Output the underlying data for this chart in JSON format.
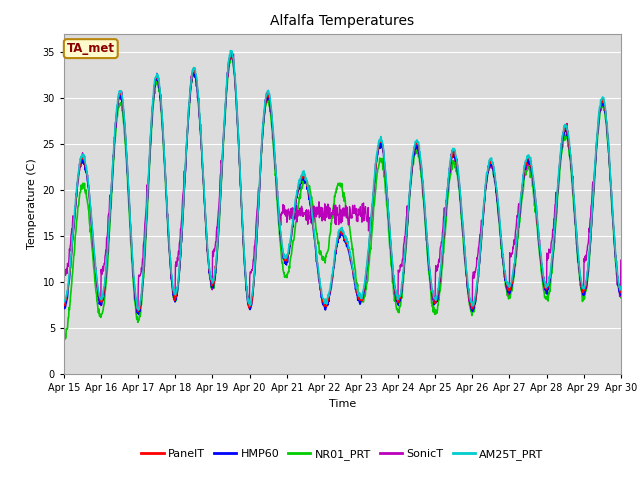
{
  "title": "Alfalfa Temperatures",
  "xlabel": "Time",
  "ylabel": "Temperature (C)",
  "ylim": [
    0,
    37
  ],
  "yticks": [
    0,
    5,
    10,
    15,
    20,
    25,
    30,
    35
  ],
  "fig_bg_color": "#ffffff",
  "plot_bg_color": "#dcdcdc",
  "grid_color": "#ffffff",
  "annotation_text": "TA_met",
  "annotation_color": "#8b0000",
  "annotation_bg": "#fffacd",
  "annotation_edge": "#b8860b",
  "series": {
    "PanelT": {
      "color": "#ff0000",
      "lw": 1.0,
      "zorder": 4
    },
    "HMP60": {
      "color": "#0000ff",
      "lw": 1.0,
      "zorder": 3
    },
    "NR01_PRT": {
      "color": "#00cc00",
      "lw": 1.2,
      "zorder": 2
    },
    "SonicT": {
      "color": "#bb00bb",
      "lw": 1.0,
      "zorder": 2
    },
    "AM25T_PRT": {
      "color": "#00cccc",
      "lw": 1.2,
      "zorder": 5
    }
  },
  "xticklabels": [
    "Apr 15",
    "Apr 16",
    "Apr 17",
    "Apr 18",
    "Apr 19",
    "Apr 20",
    "Apr 21",
    "Apr 22",
    "Apr 23",
    "Apr 24",
    "Apr 25",
    "Apr 26",
    "Apr 27",
    "Apr 28",
    "Apr 29",
    "Apr 30"
  ],
  "n_days": 15,
  "points_per_day": 96,
  "title_fontsize": 10,
  "axis_fontsize": 8,
  "tick_fontsize": 7
}
